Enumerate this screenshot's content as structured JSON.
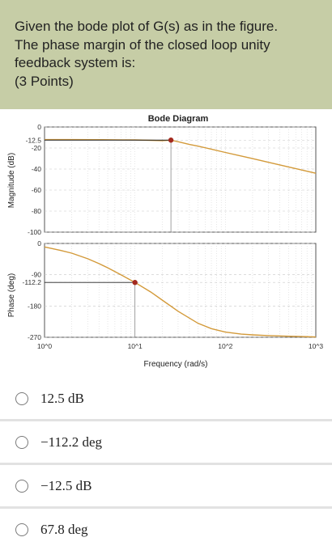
{
  "question": {
    "lines": [
      "Given the bode plot of G(s) as in the figure.",
      "The phase margin of the closed loop unity",
      "feedback system is:",
      "(3 Points)"
    ]
  },
  "chart_data": [
    {
      "type": "line",
      "title": "Bode Diagram",
      "xlabel": "",
      "ylabel": "Magnitude (dB)",
      "xscale": "log",
      "xlim": [
        1,
        1000
      ],
      "ylim": [
        -100,
        0
      ],
      "yticks": [
        "0",
        "-12.5",
        "-20",
        "-40",
        "-60",
        "-80",
        "-100"
      ],
      "ytick_values": [
        0,
        -12.5,
        -20,
        -40,
        -60,
        -80,
        -100
      ],
      "grid": true,
      "series": [
        {
          "color": "#d39a3a",
          "x": [
            1,
            2,
            4,
            7,
            10,
            15,
            20,
            25,
            30,
            40,
            50,
            70,
            100,
            150,
            200,
            300,
            500,
            700,
            1000
          ],
          "y": [
            -12.0,
            -12.0,
            -12.1,
            -12.2,
            -12.3,
            -12.7,
            -13.0,
            -12.5,
            -14.0,
            -16.6,
            -18.2,
            -21.1,
            -24.2,
            -27.6,
            -30.1,
            -33.6,
            -38.0,
            -40.9,
            -44.0
          ]
        }
      ],
      "annotations": [
        {
          "x": 25,
          "y": -12.5,
          "marker": "point",
          "color": "#a3291e"
        }
      ]
    },
    {
      "type": "line",
      "title": "",
      "xlabel": "Frequency (rad/s)",
      "ylabel": "Phase (deg)",
      "xscale": "log",
      "xlim": [
        1,
        1000
      ],
      "ylim": [
        -270,
        0
      ],
      "xticks": [
        "10^0",
        "10^1",
        "10^2",
        "10^3"
      ],
      "yticks": [
        "0",
        "-90",
        "-112.2",
        "-180",
        "-270"
      ],
      "ytick_values": [
        0,
        -90,
        -112.2,
        -180,
        -270
      ],
      "grid": true,
      "series": [
        {
          "color": "#d39a3a",
          "x": [
            1,
            1.5,
            2,
            3,
            4,
            5,
            7,
            10,
            15,
            20,
            30,
            50,
            70,
            100,
            150,
            200,
            300,
            500,
            700,
            1000
          ],
          "y": [
            -10,
            -20,
            -28,
            -44,
            -58,
            -70,
            -90,
            -112.2,
            -140,
            -163,
            -195,
            -230,
            -245,
            -255,
            -261,
            -263,
            -265,
            -267,
            -268,
            -269
          ]
        }
      ],
      "annotations": [
        {
          "x": 10,
          "y": -112.2,
          "marker": "point",
          "color": "#a3291e"
        }
      ]
    }
  ],
  "figure_labels": {
    "title": "Bode Diagram",
    "mag_ylabel": "Magnitude (dB)",
    "phase_ylabel": "Phase (deg)",
    "xlabel": "Frequency (rad/s)",
    "mag_ticks": [
      "0",
      "-12.5",
      "-20",
      "-40",
      "-60",
      "-80",
      "-100"
    ],
    "phase_ticks": [
      "0",
      "-90",
      "-112.2",
      "-180",
      "-270"
    ]
  },
  "options": [
    {
      "label": "12.5 dB"
    },
    {
      "label": "−112.2 deg"
    },
    {
      "label": "−12.5 dB"
    },
    {
      "label": "67.8 deg"
    }
  ]
}
